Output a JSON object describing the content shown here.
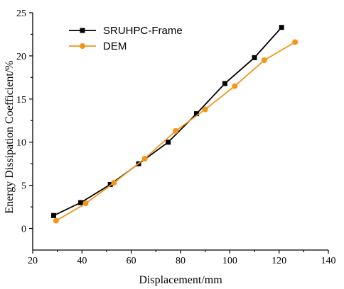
{
  "chart_data": {
    "type": "line",
    "xlabel": "Displacement/mm",
    "ylabel": "Energy Dissipation Coefficient/%",
    "xlim": [
      20,
      140
    ],
    "ylim": [
      -2.5,
      25
    ],
    "xticks": [
      20,
      40,
      60,
      80,
      100,
      120,
      140
    ],
    "yticks": [
      0,
      5,
      10,
      15,
      20,
      25
    ],
    "grid": false,
    "legend_position": "top-left",
    "series": [
      {
        "name": "SRUHPC-Frame",
        "color": "#000000",
        "marker": "square",
        "x": [
          28.5,
          39.5,
          51.5,
          63,
          75,
          86.5,
          98,
          110,
          121
        ],
        "y": [
          1.5,
          3.0,
          5.1,
          7.5,
          10.0,
          13.3,
          16.8,
          19.8,
          23.3
        ]
      },
      {
        "name": "DEM",
        "color": "#f39519",
        "marker": "circle",
        "x": [
          29.5,
          41.5,
          53,
          65.5,
          78,
          90,
          102,
          114,
          126.5
        ],
        "y": [
          0.9,
          2.9,
          5.3,
          8.1,
          11.3,
          13.8,
          16.5,
          19.5,
          21.6
        ]
      }
    ]
  }
}
